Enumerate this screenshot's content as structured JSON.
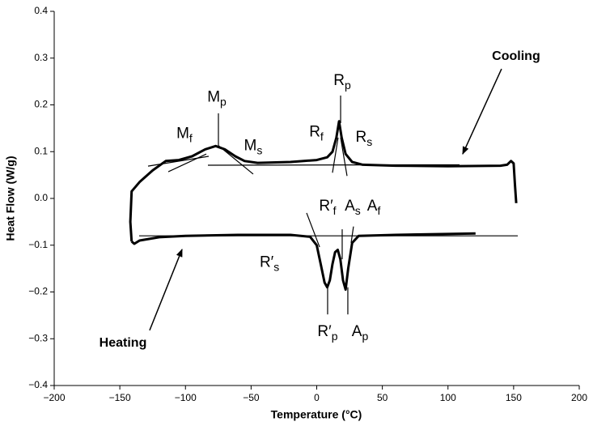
{
  "chart_data": {
    "type": "line",
    "xlabel": "Temperature (°C)",
    "ylabel": "Heat Flow (W/g)",
    "xlim": [
      -200,
      200
    ],
    "ylim": [
      -0.4,
      0.4
    ],
    "xticks": [
      {
        "value": -200,
        "label": "−200"
      },
      {
        "value": -150,
        "label": "−150"
      },
      {
        "value": -100,
        "label": "−100"
      },
      {
        "value": -50,
        "label": "−50"
      },
      0,
      50,
      100,
      150,
      200
    ],
    "yticks": [
      {
        "value": -0.4,
        "label": "−0.4"
      },
      {
        "value": -0.3,
        "label": "−0.3"
      },
      {
        "value": -0.2,
        "label": "−0.2"
      },
      {
        "value": -0.1,
        "label": "−0.1"
      },
      {
        "value": 0,
        "label": "0.0"
      },
      0.1,
      0.2,
      0.3,
      0.4
    ],
    "grid": false,
    "series": [
      {
        "name": "Cooling",
        "color": "#000000",
        "label_pos": [
          151.9,
          0.303
        ],
        "arrow": [
          140.8,
          0.277,
          111.2,
          0.095
        ],
        "x": [
          152,
          151,
          150,
          148,
          145,
          140,
          100,
          60,
          35,
          27,
          22,
          19,
          17,
          15,
          12,
          8,
          0,
          -20,
          -45,
          -55,
          -62,
          -70,
          -77,
          -85,
          -95,
          -105,
          -115,
          -125,
          -135,
          -141,
          -142,
          -141
        ],
        "values": [
          -0.01,
          0.03,
          0.075,
          0.08,
          0.072,
          0.07,
          0.069,
          0.07,
          0.072,
          0.078,
          0.095,
          0.13,
          0.165,
          0.13,
          0.1,
          0.088,
          0.082,
          0.078,
          0.076,
          0.08,
          0.09,
          0.105,
          0.112,
          0.105,
          0.09,
          0.082,
          0.08,
          0.06,
          0.035,
          0.015,
          -0.05,
          -0.092
        ]
      },
      {
        "name": "Heating",
        "color": "#000000",
        "label_pos": [
          -147.6,
          -0.31
        ],
        "arrow": [
          -127.3,
          -0.282,
          -102.6,
          -0.109
        ],
        "x": [
          -141,
          -139,
          -135,
          -120,
          -100,
          -60,
          -20,
          -5,
          0,
          3,
          6,
          8,
          10,
          12,
          14,
          16,
          18,
          20,
          22,
          24,
          27,
          32,
          60,
          100,
          121
        ],
        "values": [
          -0.092,
          -0.097,
          -0.09,
          -0.083,
          -0.08,
          -0.078,
          -0.078,
          -0.082,
          -0.1,
          -0.14,
          -0.18,
          -0.19,
          -0.175,
          -0.14,
          -0.115,
          -0.11,
          -0.13,
          -0.175,
          -0.195,
          -0.15,
          -0.095,
          -0.08,
          -0.078,
          -0.076,
          -0.075
        ]
      }
    ],
    "guide_lines": [
      {
        "x": [
          -82.9,
          108.8
        ],
        "y": [
          0.071,
          0.072
        ]
      },
      {
        "x": [
          -128.5,
          -82.3
        ],
        "y": [
          0.069,
          0.09
        ]
      },
      {
        "x": [
          -113.1,
          -84.1
        ],
        "y": [
          0.057,
          0.095
        ]
      },
      {
        "x": [
          -74.9,
          -48.4
        ],
        "y": [
          0.113,
          0.052
        ]
      },
      {
        "x": [
          -74.9,
          -74.9
        ],
        "y": [
          0.182,
          0.113
        ]
      },
      {
        "x": [
          18.2,
          18.2
        ],
        "y": [
          0.22,
          0.161
        ]
      },
      {
        "x": [
          12,
          16.3
        ],
        "y": [
          0.055,
          0.13
        ]
      },
      {
        "x": [
          18.2,
          23.1
        ],
        "y": [
          0.13,
          0.048
        ]
      },
      {
        "x": [
          -135.3,
          153.2
        ],
        "y": [
          -0.08,
          -0.08
        ]
      },
      {
        "x": [
          -7.7,
          2.2
        ],
        "y": [
          -0.031,
          -0.104
        ]
      },
      {
        "x": [
          19.4,
          19.4
        ],
        "y": [
          -0.066,
          -0.13
        ]
      },
      {
        "x": [
          28,
          26.2
        ],
        "y": [
          -0.06,
          -0.095
        ]
      },
      {
        "x": [
          8.3,
          8.3
        ],
        "y": [
          -0.19,
          -0.248
        ]
      },
      {
        "x": [
          23.7,
          23.7
        ],
        "y": [
          -0.19,
          -0.248
        ]
      }
    ],
    "annotations": [
      {
        "text": "M",
        "sub": "p",
        "x": -76.1,
        "y": 0.216
      },
      {
        "text": "M",
        "sub": "f",
        "x": -100.8,
        "y": 0.138
      },
      {
        "text": "M",
        "sub": "s",
        "x": -48.4,
        "y": 0.112
      },
      {
        "text": "R",
        "sub": "p",
        "x": 19.4,
        "y": 0.251
      },
      {
        "text": "R",
        "sub": "f",
        "x": -0.3,
        "y": 0.141
      },
      {
        "text": "R",
        "sub": "s",
        "x": 36,
        "y": 0.13
      },
      {
        "text": "R′",
        "sub": "f",
        "x": 8.3,
        "y": -0.017
      },
      {
        "text": "A",
        "sub": "s",
        "x": 27.4,
        "y": -0.017
      },
      {
        "text": "A",
        "sub": "f",
        "x": 43.5,
        "y": -0.017
      },
      {
        "text": "R′",
        "sub": "s",
        "x": -36,
        "y": -0.138
      },
      {
        "text": "R′",
        "sub": "p",
        "x": 8.3,
        "y": -0.286
      },
      {
        "text": "A",
        "sub": "p",
        "x": 33,
        "y": -0.286
      }
    ]
  }
}
